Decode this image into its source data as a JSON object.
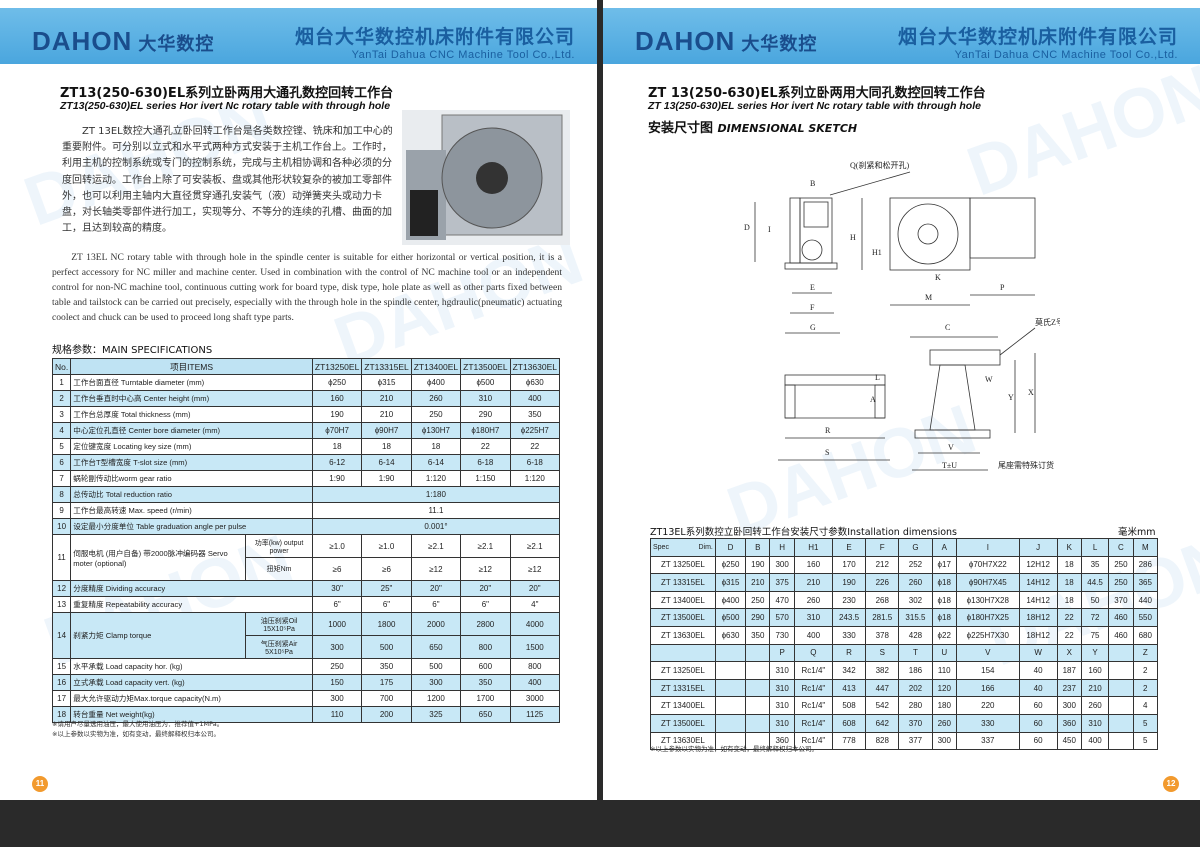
{
  "brand": {
    "logo": "DAHON",
    "logo_cn": "大华数控",
    "company_cn": "烟台大华数控机床附件有限公司",
    "company_en": "YanTai Dahua CNC Machine Tool Co.,Ltd.",
    "accent": "#4aa6de"
  },
  "left": {
    "title_cn": "ZT13(250-630)EL系列立卧两用大通孔数控回转工作台",
    "title_en": "ZT13(250-630)EL series Hor ivert  Nc rotary table with through hole",
    "intro_cn": "ZT 13EL数控大通孔立卧回转工作台是各类数控镗、铣床和加工中心的重要附件。可分别以立式和水平式两种方式安装于主机工作台上。工作时，利用主机的控制系统或专门的控制系统，完成与主机相协调和各种必须的分度回转运动。工作台上除了可安装板、盘或其他形状较复杂的被加工零部件外，也可以利用主轴内大直径贯穿通孔安装气（液）动弹簧夹头或动力卡盘，对长轴类零部件进行加工，实现等分、不等分的连续的孔槽、曲面的加工，且达到较高的精度。",
    "intro_en": "ZT 13EL NC rotary table with through hole in the spindle center is suitable for either horizontal  or vertical position, it is a perfect accessory for NC miller and machine center. Used in combination with the control of NC machine tool or an independent control for non-NC machine tool, continuous cutting work for board type, disk type, hole plate as well as other parts fixed between table and tailstock can be carried out precisely, especially with the through hole in the spindle center, hgdraulic(pneumatic) actuating coolect and chuck can be used to proceed long shaft type parts.",
    "section": "规格参数：MAIN SPECIFICATIONS",
    "spec_table": {
      "headers": [
        "No.",
        "项目ITEMS",
        "ZT13250EL",
        "ZT13315EL",
        "ZT13400EL",
        "ZT13500EL",
        "ZT13630EL"
      ],
      "rows": [
        {
          "no": "1",
          "item": "工作台面直径  Turntable diameter (mm)",
          "values": [
            "ϕ250",
            "ϕ315",
            "ϕ400",
            "ϕ500",
            "ϕ630"
          ]
        },
        {
          "no": "2",
          "item": "工作台垂直时中心高  Center height (mm)",
          "values": [
            "160",
            "210",
            "260",
            "310",
            "400"
          ]
        },
        {
          "no": "3",
          "item": "工作台总厚度  Total thickness (mm)",
          "values": [
            "190",
            "210",
            "250",
            "290",
            "350"
          ]
        },
        {
          "no": "4",
          "item": "中心定位孔直径  Center bore diameter (mm)",
          "values": [
            "ϕ70H7",
            "ϕ90H7",
            "ϕ130H7",
            "ϕ180H7",
            "ϕ225H7"
          ]
        },
        {
          "no": "5",
          "item": "定位键宽度  Locating key size (mm)",
          "values": [
            "18",
            "18",
            "18",
            "22",
            "22"
          ]
        },
        {
          "no": "6",
          "item": "工作台T型槽宽度  T-slot size (mm)",
          "values": [
            "6-12",
            "6-14",
            "6-14",
            "6-18",
            "6-18"
          ]
        },
        {
          "no": "7",
          "item": "蜗轮副传动比worm gear ratio",
          "values": [
            "1:90",
            "1:90",
            "1:120",
            "1:150",
            "1:120"
          ]
        },
        {
          "no": "8",
          "item": "总传动比  Total reduction ratio",
          "merged": "1:180"
        },
        {
          "no": "9",
          "item": "工作台最高转速  Max. speed  (r/min)",
          "merged": "11.1"
        },
        {
          "no": "10",
          "item": "设定最小分度单位 Table graduation angle per pulse",
          "merged": "0.001°"
        },
        {
          "no": "11",
          "item": "伺服电机 (用户自备) 带2000脉冲编码器 Servo moter (optional)",
          "sub": [
            {
              "label": "功率(kw) output power",
              "values": [
                "≥1.0",
                "≥1.0",
                "≥2.1",
                "≥2.1",
                "≥2.1"
              ]
            },
            {
              "label": "扭矩Nm",
              "values": [
                "≥6",
                "≥6",
                "≥12",
                "≥12",
                "≥12"
              ]
            }
          ]
        },
        {
          "no": "12",
          "item": "分度精度  Dividing accuracy",
          "values": [
            "30\"",
            "25\"",
            "20\"",
            "20\"",
            "20\""
          ]
        },
        {
          "no": "13",
          "item": "重复精度  Repeatability accuracy",
          "values": [
            "6\"",
            "6\"",
            "6\"",
            "6\"",
            "4\""
          ]
        },
        {
          "no": "14",
          "item": "刹紧力矩  Clamp torque",
          "sub": [
            {
              "label": "油压刹紧Oil 15X10⁵Pa",
              "values": [
                "1000",
                "1800",
                "2000",
                "2800",
                "4000"
              ]
            },
            {
              "label": "气压刹紧Air 5X10⁵Pa",
              "values": [
                "300",
                "500",
                "650",
                "800",
                "1500"
              ]
            }
          ]
        },
        {
          "no": "15",
          "item": "水平承载  Load capacity hor.  (kg)",
          "values": [
            "250",
            "350",
            "500",
            "600",
            "800"
          ]
        },
        {
          "no": "16",
          "item": "立式承载  Load capacity vert.  (kg)",
          "values": [
            "150",
            "175",
            "300",
            "350",
            "400"
          ]
        },
        {
          "no": "17",
          "item": "最大允许驱动力矩Max.torque capacity(N.m)",
          "values": [
            "300",
            "700",
            "1200",
            "1700",
            "3000"
          ]
        },
        {
          "no": "18",
          "item": "转台重量  Net weight(kg)",
          "values": [
            "110",
            "200",
            "325",
            "650",
            "1125"
          ]
        }
      ]
    },
    "notes": [
      "※请用户尽量选用油压，最大使用油压为：推荐值+1MPa。",
      "※以上参数以实物为准，如有变动，最终解释权归本公司。"
    ],
    "page_number": "11"
  },
  "right": {
    "title_cn": "ZT 13(250-630)EL系列立卧两用大同孔数控回转工作台",
    "title_en": "ZT 13(250-630)EL series Hor ivert  Nc rotary table with through hole",
    "sketch_title_cn": "安装尺寸图",
    "sketch_title_en": "DIMENSIONAL SKETCH",
    "drawing_labels": {
      "q": "Q(刹紧和松开孔)",
      "morse": "莫氏Z号",
      "tail": "尾座需特殊订货",
      "B": "B",
      "D": "D",
      "I": "I",
      "E": "E",
      "F": "F",
      "G": "G",
      "H": "H",
      "H1": "H1",
      "K": "K",
      "M": "M",
      "P": "P",
      "C": "C",
      "W": "W",
      "Y": "Y",
      "X": "X",
      "L": "L",
      "A": "A",
      "R": "R",
      "S": "S",
      "V": "V",
      "TU": "T±U"
    },
    "table_title": "ZT13EL系列数控立卧回转工作台安装尺寸参数Installation dimensions",
    "unit": "毫米mm",
    "dims_table": {
      "corner_dim": "Dim.",
      "corner_spec": "Spec",
      "headers1": [
        "D",
        "B",
        "H",
        "H1",
        "E",
        "F",
        "G",
        "A",
        "I",
        "J",
        "K",
        "L",
        "C",
        "M"
      ],
      "rows1": [
        [
          "ZT 13250EL",
          "ϕ250",
          "190",
          "300",
          "160",
          "170",
          "212",
          "252",
          "ϕ17",
          "ϕ70H7X22",
          "12H12",
          "18",
          "35",
          "250",
          "286"
        ],
        [
          "ZT 13315EL",
          "ϕ315",
          "210",
          "375",
          "210",
          "190",
          "226",
          "260",
          "ϕ18",
          "ϕ90H7X45",
          "14H12",
          "18",
          "44.5",
          "250",
          "365"
        ],
        [
          "ZT 13400EL",
          "ϕ400",
          "250",
          "470",
          "260",
          "230",
          "268",
          "302",
          "ϕ18",
          "ϕ130H7X28",
          "14H12",
          "18",
          "50",
          "370",
          "440"
        ],
        [
          "ZT 13500EL",
          "ϕ500",
          "290",
          "570",
          "310",
          "243.5",
          "281.5",
          "315.5",
          "ϕ18",
          "ϕ180H7X25",
          "18H12",
          "22",
          "72",
          "460",
          "550"
        ],
        [
          "ZT 13630EL",
          "ϕ630",
          "350",
          "730",
          "400",
          "330",
          "378",
          "428",
          "ϕ22",
          "ϕ225H7X30",
          "18H12",
          "22",
          "75",
          "460",
          "680"
        ]
      ],
      "headers2": [
        "",
        "",
        "",
        "P",
        "Q",
        "R",
        "S",
        "T",
        "U",
        "V",
        "W",
        "X",
        "Y",
        "",
        "Z"
      ],
      "rows2": [
        [
          "ZT 13250EL",
          "",
          "",
          "310",
          "Rc1/4\"",
          "342",
          "382",
          "186",
          "110",
          "154",
          "40",
          "187",
          "160",
          "",
          "2"
        ],
        [
          "ZT 13315EL",
          "",
          "",
          "310",
          "Rc1/4\"",
          "413",
          "447",
          "202",
          "120",
          "166",
          "40",
          "237",
          "210",
          "",
          "2"
        ],
        [
          "ZT 13400EL",
          "",
          "",
          "310",
          "Rc1/4\"",
          "508",
          "542",
          "280",
          "180",
          "220",
          "60",
          "300",
          "260",
          "",
          "4"
        ],
        [
          "ZT 13500EL",
          "",
          "",
          "310",
          "Rc1/4\"",
          "608",
          "642",
          "370",
          "260",
          "330",
          "60",
          "360",
          "310",
          "",
          "5"
        ],
        [
          "ZT 13630EL",
          "",
          "",
          "360",
          "Rc1/4\"",
          "778",
          "828",
          "377",
          "300",
          "337",
          "60",
          "450",
          "400",
          "",
          "5"
        ]
      ]
    },
    "note": "※以上参数以实物为准，如有变动，最终解释权归本公司。",
    "page_number": "12"
  }
}
